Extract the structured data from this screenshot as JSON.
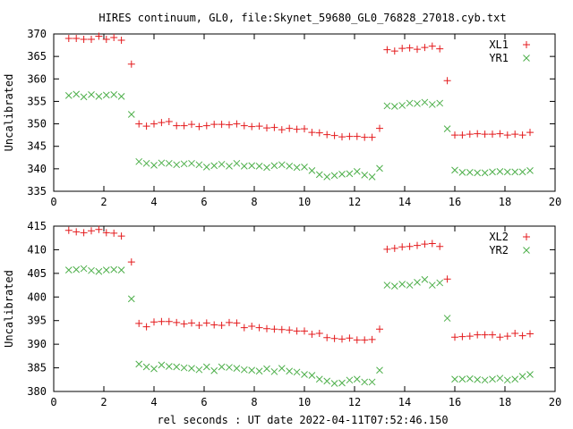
{
  "title": "HIRES continuum, GL0, file:Skynet_59680_GL0_76828_27018.cyb.txt",
  "xlabel": "rel seconds : UT date 2022-04-11T07:52:46.150",
  "chart_data": [
    {
      "type": "scatter",
      "ylabel": "Uncalibrated",
      "xlim": [
        0,
        20
      ],
      "ylim": [
        335,
        370
      ],
      "xticks": [
        0,
        2,
        4,
        6,
        8,
        10,
        12,
        14,
        16,
        18,
        20
      ],
      "yticks": [
        335,
        340,
        345,
        350,
        355,
        360,
        365,
        370
      ],
      "grid": false,
      "legend": "top-right",
      "series": [
        {
          "name": "XL1",
          "marker": "plus",
          "color": "#e41a1c",
          "x": [
            0.6,
            0.9,
            1.2,
            1.5,
            1.8,
            2.1,
            2.4,
            2.7,
            3.1,
            3.4,
            3.7,
            4.0,
            4.3,
            4.6,
            4.9,
            5.2,
            5.5,
            5.8,
            6.1,
            6.4,
            6.7,
            7.0,
            7.3,
            7.6,
            7.9,
            8.2,
            8.5,
            8.8,
            9.1,
            9.4,
            9.7,
            10.0,
            10.3,
            10.6,
            10.9,
            11.2,
            11.5,
            11.8,
            12.1,
            12.4,
            12.7,
            13.0,
            13.3,
            13.6,
            13.9,
            14.2,
            14.5,
            14.8,
            15.1,
            15.4,
            15.7,
            16.0,
            16.3,
            16.6,
            16.9,
            17.2,
            17.5,
            17.8,
            18.1,
            18.4,
            18.7,
            19.0
          ],
          "y": [
            369,
            369,
            368.8,
            368.8,
            369.5,
            368.8,
            369.2,
            368.6,
            363.3,
            350,
            349.5,
            350,
            350.3,
            350.5,
            349.6,
            349.6,
            349.9,
            349.4,
            349.6,
            349.9,
            349.9,
            349.8,
            350,
            349.6,
            349.4,
            349.5,
            349.1,
            349.2,
            348.7,
            349,
            348.8,
            348.9,
            348.1,
            348,
            347.6,
            347.4,
            347.1,
            347.2,
            347.2,
            347,
            347,
            349,
            366.5,
            366.2,
            366.8,
            366.9,
            366.6,
            367,
            367.3,
            366.7,
            359.6,
            347.5,
            347.5,
            347.7,
            347.8,
            347.7,
            347.7,
            347.8,
            347.5,
            347.7,
            347.5,
            348.1
          ]
        },
        {
          "name": "YR1",
          "marker": "cross",
          "color": "#4daf4a",
          "x": [
            0.6,
            0.9,
            1.2,
            1.5,
            1.8,
            2.1,
            2.4,
            2.7,
            3.1,
            3.4,
            3.7,
            4.0,
            4.3,
            4.6,
            4.9,
            5.2,
            5.5,
            5.8,
            6.1,
            6.4,
            6.7,
            7.0,
            7.3,
            7.6,
            7.9,
            8.2,
            8.5,
            8.8,
            9.1,
            9.4,
            9.7,
            10.0,
            10.3,
            10.6,
            10.9,
            11.2,
            11.5,
            11.8,
            12.1,
            12.4,
            12.7,
            13.0,
            13.3,
            13.6,
            13.9,
            14.2,
            14.5,
            14.8,
            15.1,
            15.4,
            15.7,
            16.0,
            16.3,
            16.6,
            16.9,
            17.2,
            17.5,
            17.8,
            18.1,
            18.4,
            18.7,
            19.0
          ],
          "y": [
            356.3,
            356.6,
            356,
            356.5,
            356.1,
            356.4,
            356.5,
            356.1,
            352.1,
            341.6,
            341.2,
            340.8,
            341.3,
            341.2,
            340.9,
            341.1,
            341.2,
            340.9,
            340.4,
            340.7,
            341,
            340.6,
            341.2,
            340.6,
            340.7,
            340.6,
            340.3,
            340.7,
            340.9,
            340.6,
            340.3,
            340.4,
            339.6,
            338.7,
            338.2,
            338.5,
            338.8,
            338.9,
            339.4,
            338.6,
            338.2,
            340.1,
            354,
            353.9,
            354.1,
            354.6,
            354.5,
            354.8,
            354.3,
            354.6,
            348.9,
            339.7,
            339.2,
            339.2,
            339.1,
            339.1,
            339.3,
            339.4,
            339.3,
            339.3,
            339.3,
            339.6
          ]
        }
      ]
    },
    {
      "type": "scatter",
      "ylabel": "Uncalibrated",
      "xlim": [
        0,
        20
      ],
      "ylim": [
        380,
        415
      ],
      "xticks": [
        0,
        2,
        4,
        6,
        8,
        10,
        12,
        14,
        16,
        18,
        20
      ],
      "yticks": [
        380,
        385,
        390,
        395,
        400,
        405,
        410,
        415
      ],
      "grid": false,
      "legend": "top-right",
      "series": [
        {
          "name": "XL2",
          "marker": "plus",
          "color": "#e41a1c",
          "x": [
            0.6,
            0.9,
            1.2,
            1.5,
            1.8,
            2.1,
            2.4,
            2.7,
            3.1,
            3.4,
            3.7,
            4.0,
            4.3,
            4.6,
            4.9,
            5.2,
            5.5,
            5.8,
            6.1,
            6.4,
            6.7,
            7.0,
            7.3,
            7.6,
            7.9,
            8.2,
            8.5,
            8.8,
            9.1,
            9.4,
            9.7,
            10.0,
            10.3,
            10.6,
            10.9,
            11.2,
            11.5,
            11.8,
            12.1,
            12.4,
            12.7,
            13.0,
            13.3,
            13.6,
            13.9,
            14.2,
            14.5,
            14.8,
            15.1,
            15.4,
            15.7,
            16.0,
            16.3,
            16.6,
            16.9,
            17.2,
            17.5,
            17.8,
            18.1,
            18.4,
            18.7,
            19.0
          ],
          "y": [
            414.1,
            413.8,
            413.6,
            414,
            414.3,
            413.6,
            413.5,
            412.9,
            407.4,
            394.4,
            393.7,
            394.7,
            394.8,
            394.8,
            394.6,
            394.3,
            394.5,
            394,
            394.5,
            394.1,
            394,
            394.6,
            394.5,
            393.5,
            393.8,
            393.5,
            393.3,
            393.2,
            393.1,
            393,
            392.8,
            392.8,
            392.1,
            392.3,
            391.4,
            391.2,
            391.1,
            391.3,
            390.9,
            390.9,
            391,
            393.2,
            410.1,
            410.3,
            410.6,
            410.7,
            410.9,
            411.2,
            411.3,
            410.7,
            403.8,
            391.5,
            391.6,
            391.7,
            392,
            392,
            392,
            391.5,
            391.7,
            392.3,
            391.8,
            392.2
          ]
        },
        {
          "name": "YR2",
          "marker": "cross",
          "color": "#4daf4a",
          "x": [
            0.6,
            0.9,
            1.2,
            1.5,
            1.8,
            2.1,
            2.4,
            2.7,
            3.1,
            3.4,
            3.7,
            4.0,
            4.3,
            4.6,
            4.9,
            5.2,
            5.5,
            5.8,
            6.1,
            6.4,
            6.7,
            7.0,
            7.3,
            7.6,
            7.9,
            8.2,
            8.5,
            8.8,
            9.1,
            9.4,
            9.7,
            10.0,
            10.3,
            10.6,
            10.9,
            11.2,
            11.5,
            11.8,
            12.1,
            12.4,
            12.7,
            13.0,
            13.3,
            13.6,
            13.9,
            14.2,
            14.5,
            14.8,
            15.1,
            15.4,
            15.7,
            16.0,
            16.3,
            16.6,
            16.9,
            17.2,
            17.5,
            17.8,
            18.1,
            18.4,
            18.7,
            19.0
          ],
          "y": [
            405.7,
            405.8,
            406,
            405.6,
            405.4,
            405.7,
            405.8,
            405.7,
            399.6,
            385.8,
            385.2,
            384.8,
            385.6,
            385.3,
            385.2,
            385,
            384.9,
            384.6,
            385.2,
            384.4,
            385.2,
            385.1,
            384.9,
            384.6,
            384.5,
            384.3,
            384.8,
            384.2,
            384.9,
            384.3,
            384.1,
            383.6,
            383.4,
            382.6,
            382.2,
            381.7,
            381.8,
            382.4,
            382.6,
            382,
            382,
            384.5,
            402.5,
            402.3,
            402.7,
            402.5,
            403.1,
            403.7,
            402.5,
            403,
            395.5,
            382.6,
            382.6,
            382.7,
            382.5,
            382.4,
            382.6,
            382.8,
            382.4,
            382.6,
            383.2,
            383.6
          ]
        }
      ]
    }
  ]
}
